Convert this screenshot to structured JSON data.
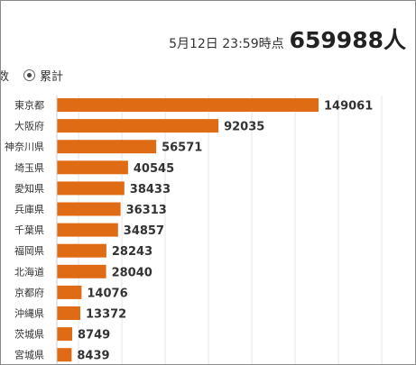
{
  "header": {
    "timestamp": "5月12日 23:59時点",
    "total": "659988",
    "unit": "人"
  },
  "legend": {
    "left_partial": "数",
    "selected_option": "累計"
  },
  "colors": {
    "bar": "#e06b15",
    "grid": "#e4e4e4"
  },
  "chart_data": {
    "type": "bar",
    "orientation": "horizontal",
    "categories": [
      "東京都",
      "大阪府",
      "神奈川県",
      "埼玉県",
      "愛知県",
      "兵庫県",
      "千葉県",
      "福岡県",
      "北海道",
      "京都府",
      "沖縄県",
      "茨城県",
      "宮城県"
    ],
    "values": [
      149061,
      92035,
      56571,
      40545,
      38433,
      36313,
      34857,
      28243,
      28040,
      14076,
      13372,
      8749,
      8439
    ],
    "grid": true
  }
}
